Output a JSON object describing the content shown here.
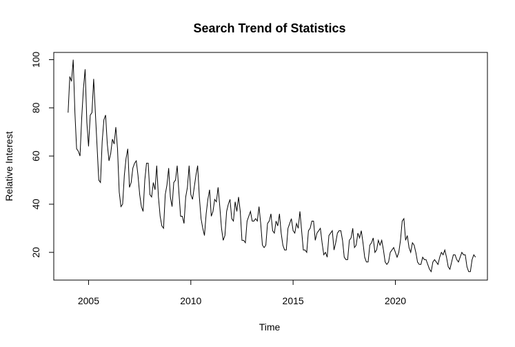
{
  "chart_data": {
    "type": "line",
    "title": "Search Trend of Statistics",
    "xlabel": "Time",
    "ylabel": "Relative Interest",
    "xlim": [
      2003.3,
      2024.5
    ],
    "ylim": [
      8.5,
      103
    ],
    "x_ticks": [
      2005,
      2010,
      2015,
      2020
    ],
    "y_ticks": [
      20,
      40,
      60,
      80,
      100
    ],
    "grid": false,
    "legend": "none",
    "line_color": "#000000",
    "start_year": 2004,
    "frequency": 12,
    "series": [
      {
        "values": [
          78,
          93,
          91,
          100,
          78,
          63,
          62,
          60,
          76,
          88,
          96,
          74,
          64,
          77,
          78,
          92,
          78,
          64,
          50,
          49,
          66,
          75,
          77,
          65,
          58,
          61,
          67,
          65,
          72,
          63,
          45,
          39,
          40,
          52,
          59,
          63,
          47,
          49,
          55,
          57,
          58,
          52,
          44,
          39,
          37,
          50,
          57,
          57,
          44,
          43,
          49,
          46,
          56,
          43,
          35,
          31,
          30,
          44,
          48,
          55,
          43,
          39,
          49,
          50,
          56,
          45,
          35,
          35,
          32,
          43,
          47,
          56,
          44,
          42,
          47,
          52,
          56,
          43,
          34,
          30,
          27,
          36,
          42,
          46,
          35,
          37,
          42,
          41,
          47,
          39,
          30,
          25,
          27,
          37,
          40,
          42,
          34,
          33,
          41,
          37,
          43,
          37,
          25,
          25,
          24,
          33,
          35,
          37,
          33,
          33,
          34,
          33,
          39,
          32,
          23,
          22,
          23,
          32,
          33,
          36,
          29,
          28,
          33,
          31,
          36,
          28,
          23,
          21,
          21,
          30,
          32,
          34,
          29,
          28,
          32,
          30,
          37,
          29,
          21,
          21,
          20,
          29,
          30,
          33,
          33,
          25,
          28,
          29,
          30,
          24,
          19,
          20,
          18,
          27,
          28,
          29,
          21,
          24,
          28,
          29,
          29,
          25,
          18,
          17,
          17,
          25,
          26,
          30,
          22,
          23,
          28,
          26,
          29,
          24,
          18,
          16,
          16,
          23,
          24,
          26,
          20,
          21,
          25,
          23,
          25,
          21,
          16,
          15,
          16,
          20,
          21,
          22,
          20,
          18,
          20,
          25,
          33,
          34,
          25,
          27,
          22,
          20,
          24,
          23,
          20,
          16,
          15,
          15,
          18,
          17,
          17,
          15,
          13,
          12,
          16,
          17,
          16,
          15,
          18,
          20,
          19,
          21,
          18,
          14,
          13,
          16,
          19,
          19,
          17,
          16,
          18,
          20,
          19,
          19,
          14,
          12,
          12,
          17,
          19,
          18
        ]
      }
    ]
  }
}
